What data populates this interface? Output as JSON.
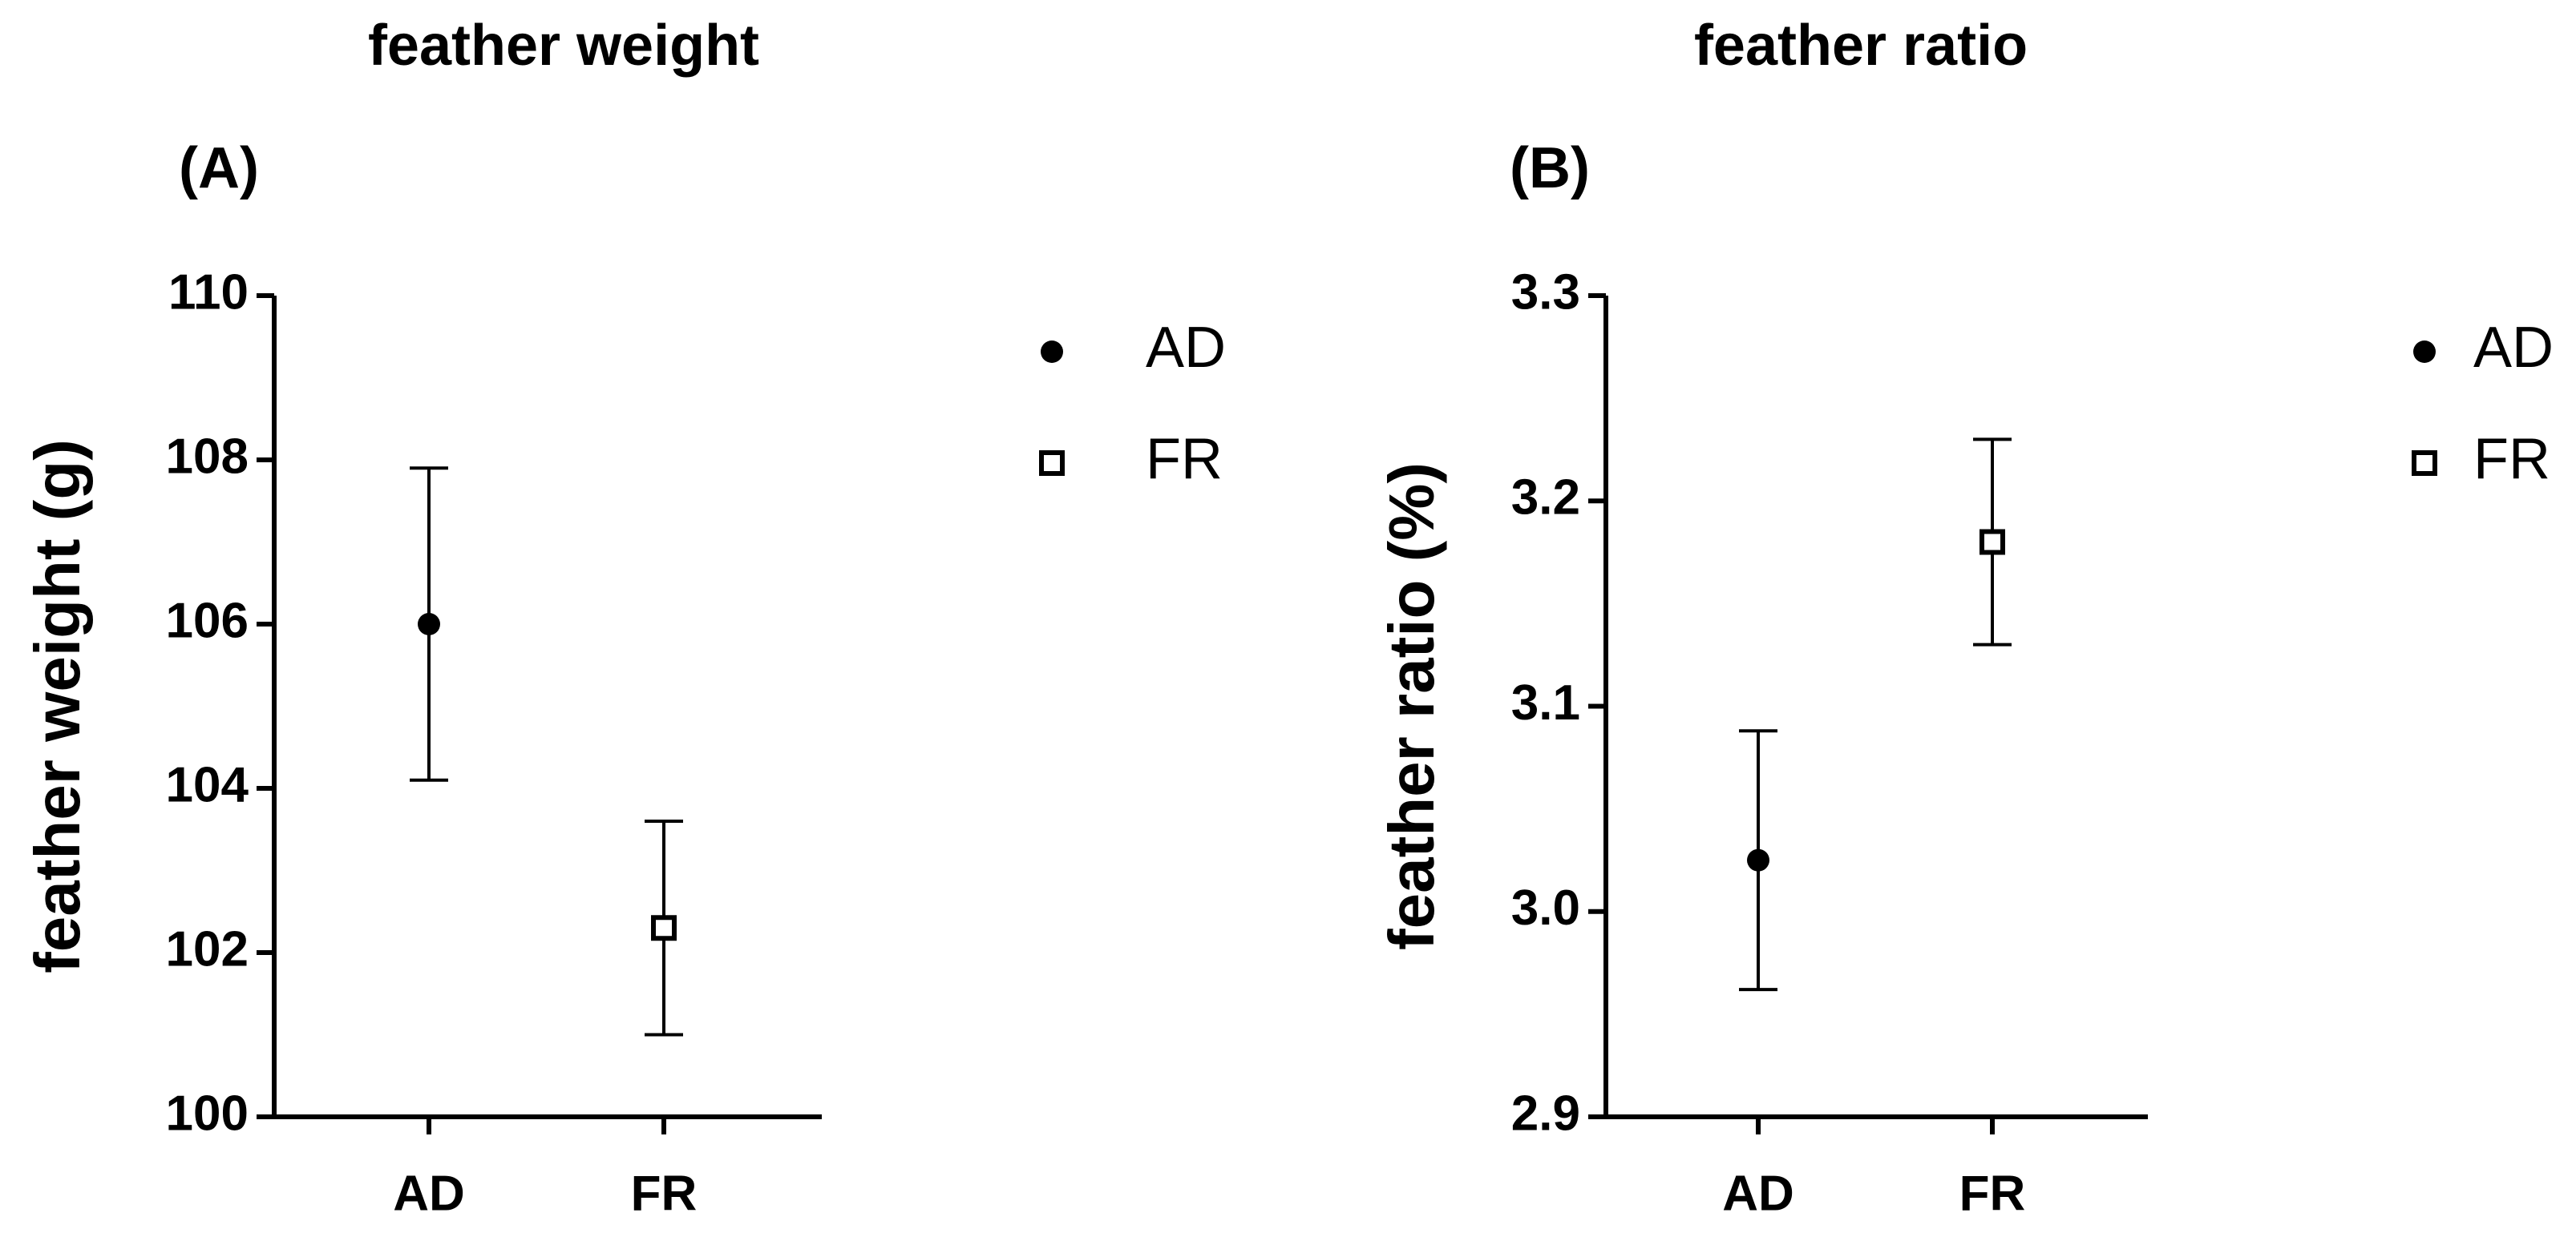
{
  "chart_data": [
    {
      "type": "errorbar",
      "title": "feather weight",
      "subtitle": "(A)",
      "y_label": "feather weight (g)",
      "categories": [
        "AD",
        "FR"
      ],
      "series": [
        {
          "name": "AD",
          "marker": "circle",
          "color": "#000000",
          "values": [
            106.0,
            null
          ],
          "errors": [
            1.9,
            null
          ]
        },
        {
          "name": "FR",
          "marker": "square",
          "color": "#000000",
          "values": [
            null,
            102.3
          ],
          "errors": [
            null,
            1.3
          ]
        }
      ],
      "ylim": [
        100,
        110
      ],
      "yticks": [
        100,
        102,
        104,
        106,
        108,
        110
      ],
      "legend": "right"
    },
    {
      "type": "errorbar",
      "title": "feather ratio",
      "subtitle": "(B)",
      "y_label": "feather ratio (%)",
      "categories": [
        "AD",
        "FR"
      ],
      "series": [
        {
          "name": "AD",
          "marker": "circle",
          "color": "#000000",
          "values": [
            3.025,
            null
          ],
          "errors": [
            0.063,
            null
          ]
        },
        {
          "name": "FR",
          "marker": "square",
          "color": "#000000",
          "values": [
            null,
            3.18
          ],
          "errors": [
            null,
            0.05
          ]
        }
      ],
      "ylim": [
        2.9,
        3.3
      ],
      "yticks": [
        2.9,
        {
          "value": 3,
          "label": "3.0"
        },
        3.1,
        3.2,
        3.3
      ],
      "legend": "right"
    }
  ]
}
